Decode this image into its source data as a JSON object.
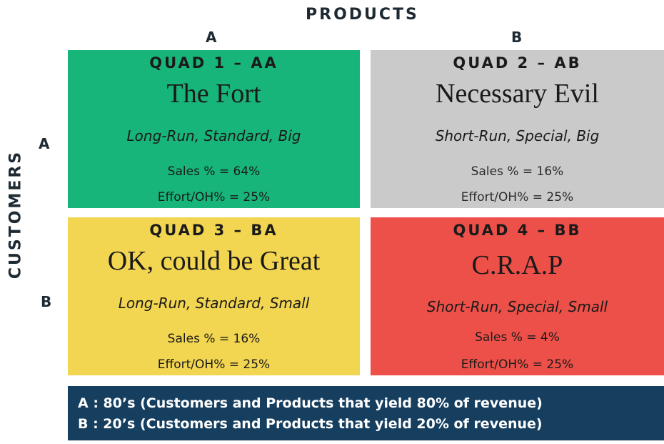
{
  "axes": {
    "products_title": "PRODUCTS",
    "customers_title": "CUSTOMERS",
    "column_a": "A",
    "column_b": "B",
    "row_a": "A",
    "row_b": "B"
  },
  "quadrants": [
    {
      "heading": "QUAD 1 – AA",
      "name": "The Fort",
      "description": "Long-Run, Standard, Big",
      "sales": "Sales % = 64%",
      "effort": "Effort/OH% = 25%",
      "color": "#18b57a"
    },
    {
      "heading": "QUAD 2 – AB",
      "name": "Necessary Evil",
      "description": "Short-Run, Special, Big",
      "sales": "Sales % = 16%",
      "effort": "Effort/OH% = 25%",
      "color": "#cacaca"
    },
    {
      "heading": "QUAD 3 – BA",
      "name": "OK, could be Great",
      "description": "Long-Run, Standard, Small",
      "sales": "Sales % = 16%",
      "effort": "Effort/OH% = 25%",
      "color": "#f2d550"
    },
    {
      "heading": "QUAD 4 – BB",
      "name": "C.R.A.P",
      "description": "Short-Run, Special, Small",
      "sales": "Sales % = 4%",
      "effort": "Effort/OH% = 25%",
      "color": "#ec5048"
    }
  ],
  "legend": {
    "line_a": "A : 80’s (Customers and Products that yield 80% of revenue)",
    "line_b": "B : 20’s (Customers and Products that yield 20% of revenue)",
    "color": "#163e5f"
  }
}
